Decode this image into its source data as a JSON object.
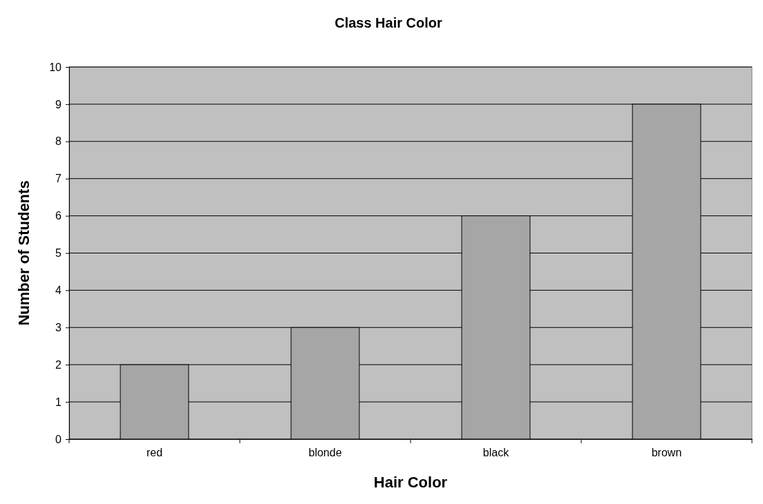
{
  "chart_data": {
    "type": "bar",
    "title": "Class Hair Color",
    "xlabel": "Hair Color",
    "ylabel": "Number of Students",
    "categories": [
      "red",
      "blonde",
      "black",
      "brown"
    ],
    "values": [
      2,
      3,
      6,
      9
    ],
    "color": "#a6a6a6",
    "ylim": [
      0,
      10
    ],
    "yticks": [
      0,
      1,
      2,
      3,
      4,
      5,
      6,
      7,
      8,
      9,
      10
    ],
    "grid": "y"
  }
}
